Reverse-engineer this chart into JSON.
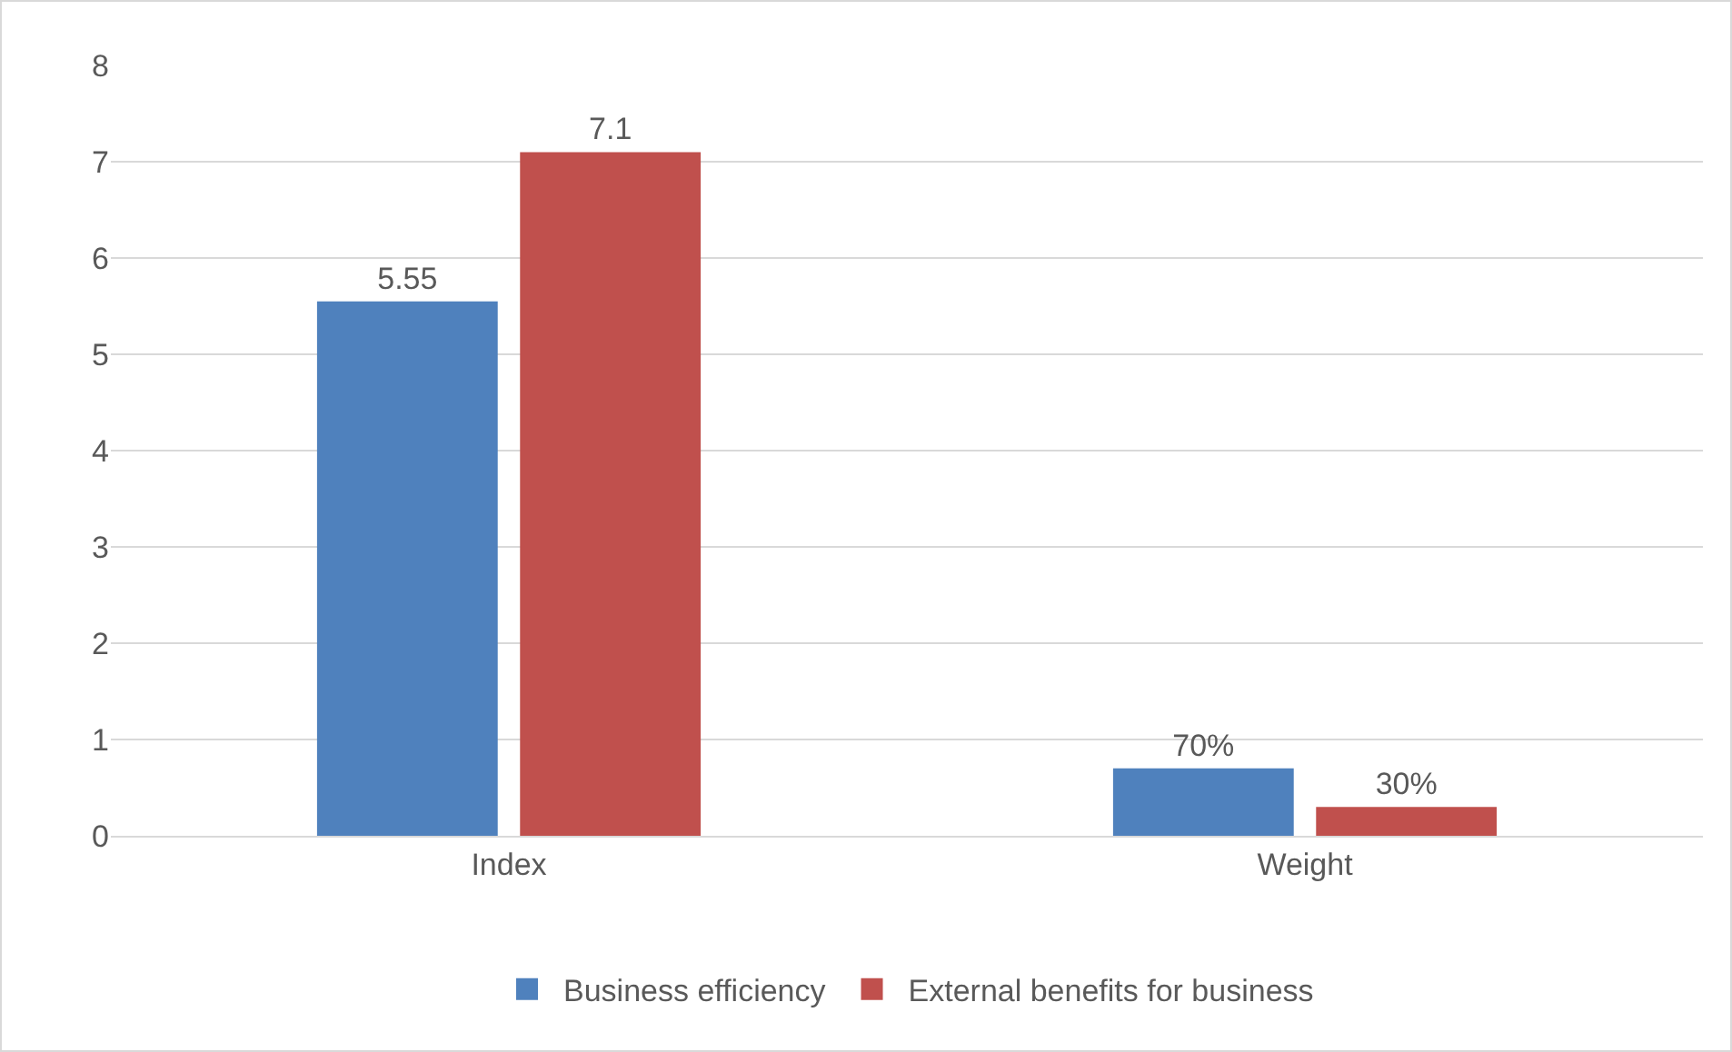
{
  "chart_data": {
    "type": "bar",
    "categories": [
      "Index",
      "Weight"
    ],
    "series": [
      {
        "name": "Business efficiency",
        "color": "#4f81bd",
        "values": [
          5.55,
          0.7
        ],
        "value_labels": [
          "5.55",
          "70%"
        ]
      },
      {
        "name": "External benefits for business",
        "color": "#c0504d",
        "values": [
          7.1,
          0.3
        ],
        "value_labels": [
          "7.1",
          "30%"
        ]
      }
    ],
    "ylim": [
      0,
      8
    ],
    "yticks": [
      0,
      1,
      2,
      3,
      4,
      5,
      6,
      7,
      8
    ],
    "grid": "y",
    "legend": "bottom"
  }
}
